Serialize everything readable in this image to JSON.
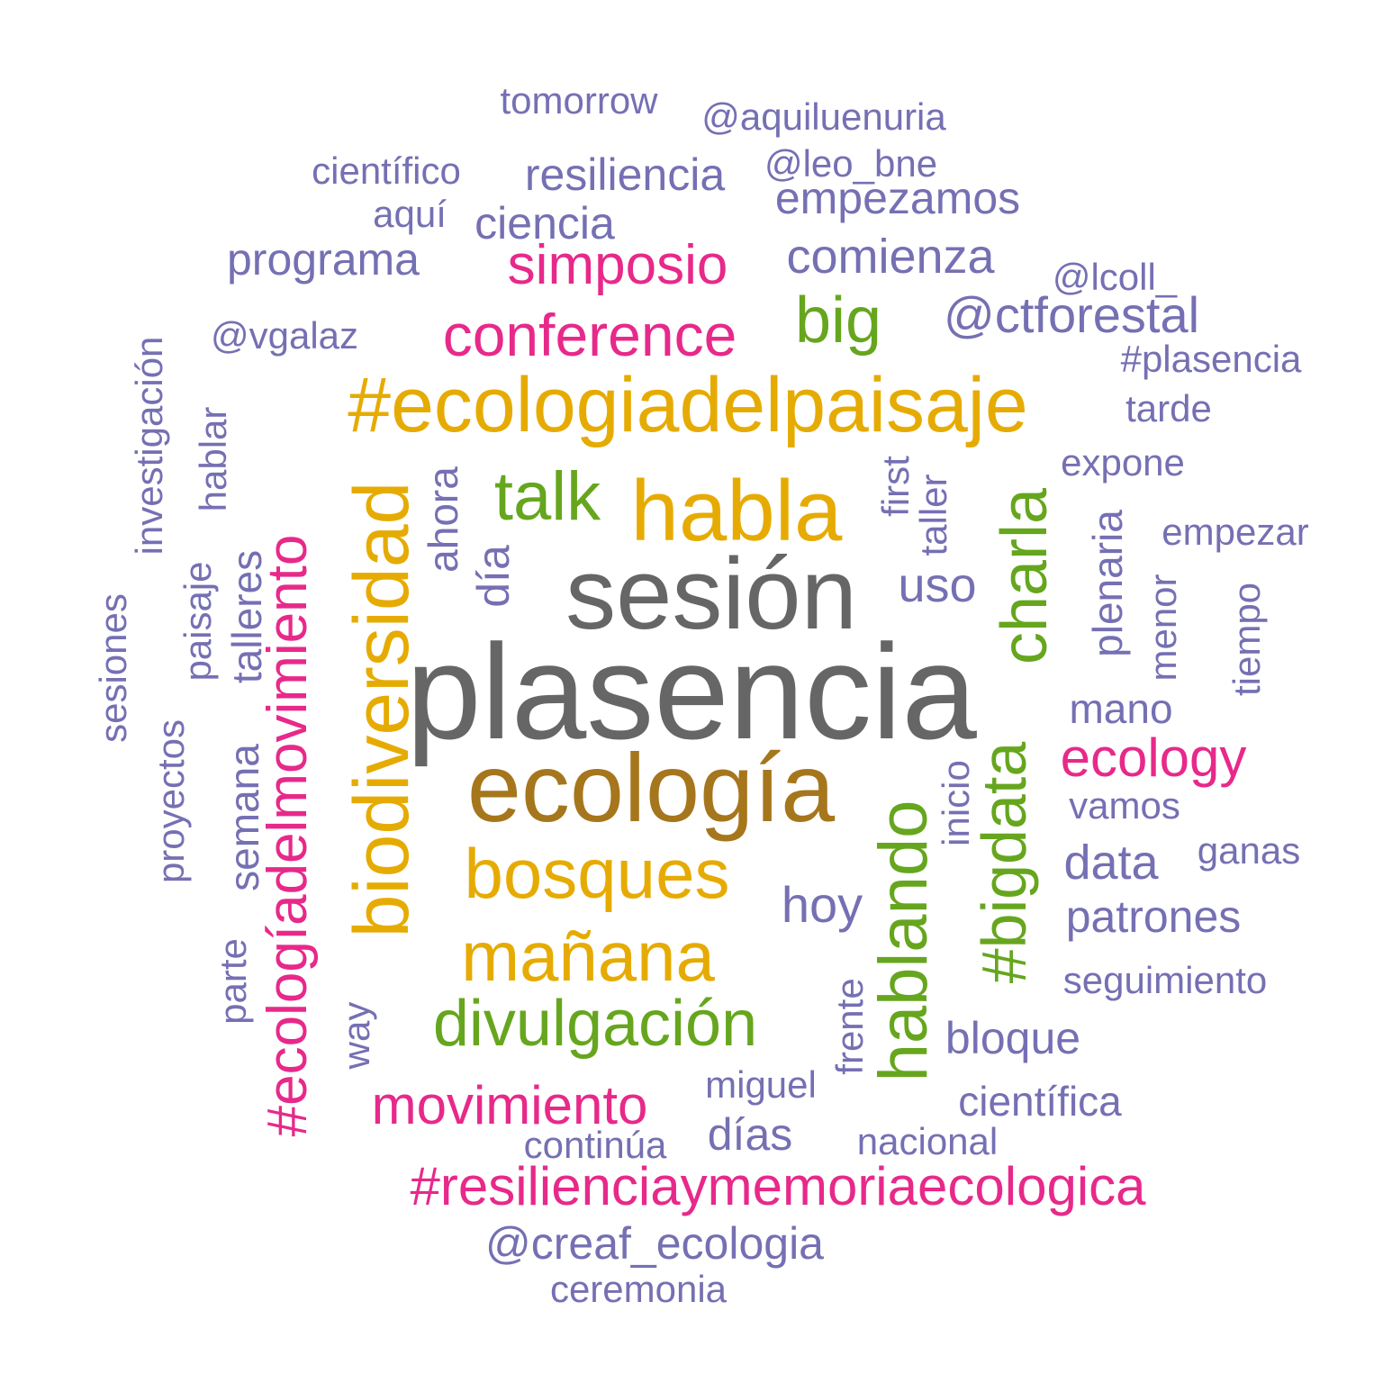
{
  "palette": {
    "gray": "#666666",
    "brown": "#A6761D",
    "gold": "#E6AB02",
    "green": "#66A61E",
    "pink": "#E7298A",
    "purple": "#7570B3"
  },
  "words": [
    "plasencia",
    "sesión",
    "ecología",
    "habla",
    "#ecologiadelpaisaje",
    "biodiversidad",
    "bosques",
    "mañana",
    "talk",
    "big",
    "charla",
    "divulgación",
    "hablando",
    "#bigdata",
    "conference",
    "simposio",
    "#ecologíadelmovimiento",
    "movimiento",
    "#resilienciaymemoriaecologica",
    "ecology",
    "tomorrow",
    "@aquiluenuria",
    "científico",
    "resiliencia",
    "@leo_bne",
    "empezamos",
    "aquí",
    "ciencia",
    "programa",
    "comienza",
    "@lcoll_",
    "@ctforestal",
    "@vgalaz",
    "#plasencia",
    "tarde",
    "investigación",
    "hablar",
    "expone",
    "first",
    "taller",
    "ahora",
    "empezar",
    "día",
    "uso",
    "plenaria",
    "paisaje",
    "talleres",
    "menor",
    "tiempo",
    "sesiones",
    "mano",
    "proyectos",
    "semana",
    "vamos",
    "inicio",
    "data",
    "ganas",
    "hoy",
    "patrones",
    "parte",
    "seguimiento",
    "frente",
    "way",
    "bloque",
    "miguel",
    "científica",
    "días",
    "continúa",
    "nacional",
    "@creaf_ecologia",
    "ceremonia"
  ]
}
